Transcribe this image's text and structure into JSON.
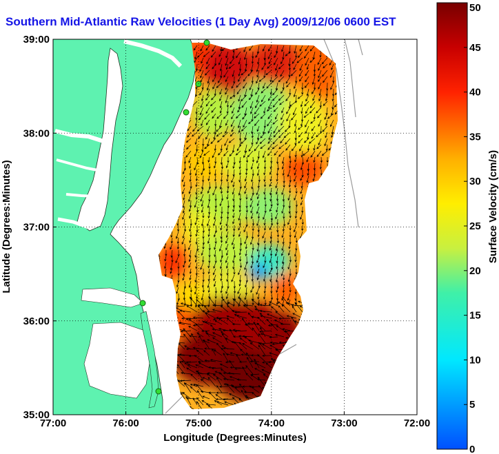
{
  "title": "Southern Mid-Atlantic Raw Velocities (1 Day Avg) 2009/12/06 0600 EST",
  "xlabel": "Longitude (Degrees:Minutes)",
  "ylabel": "Latitude (Degrees:Minutes)",
  "colorbar_label": "Surface Velocity (cm/s)",
  "xticks": [
    {
      "value": -77,
      "label": "77:00"
    },
    {
      "value": -76,
      "label": "76:00"
    },
    {
      "value": -75,
      "label": "75:00"
    },
    {
      "value": -74,
      "label": "74:00"
    },
    {
      "value": -73,
      "label": "73:00"
    },
    {
      "value": -72,
      "label": "72:00"
    }
  ],
  "yticks": [
    {
      "value": 35,
      "label": "35:00"
    },
    {
      "value": 36,
      "label": "36:00"
    },
    {
      "value": 37,
      "label": "37:00"
    },
    {
      "value": 38,
      "label": "38:00"
    },
    {
      "value": 39,
      "label": "39:00"
    }
  ],
  "colorbar_ticks": [
    {
      "value": 0,
      "label": "0"
    },
    {
      "value": 5,
      "label": "5"
    },
    {
      "value": 10,
      "label": "10"
    },
    {
      "value": 15,
      "label": "15"
    },
    {
      "value": 20,
      "label": "20"
    },
    {
      "value": 25,
      "label": "25"
    },
    {
      "value": 30,
      "label": "30"
    },
    {
      "value": 35,
      "label": "35"
    },
    {
      "value": 40,
      "label": "40"
    },
    {
      "value": 45,
      "label": "45"
    },
    {
      "value": 50,
      "label": "50"
    }
  ],
  "colors": {
    "land": "#5ef2b0",
    "water": "#ffffff",
    "title": "#1414e6",
    "station": "#33dd33"
  },
  "map_extent": {
    "lon": [
      -77,
      -72
    ],
    "lat": [
      35,
      39
    ]
  },
  "velocity_range": [
    0,
    50
  ]
}
